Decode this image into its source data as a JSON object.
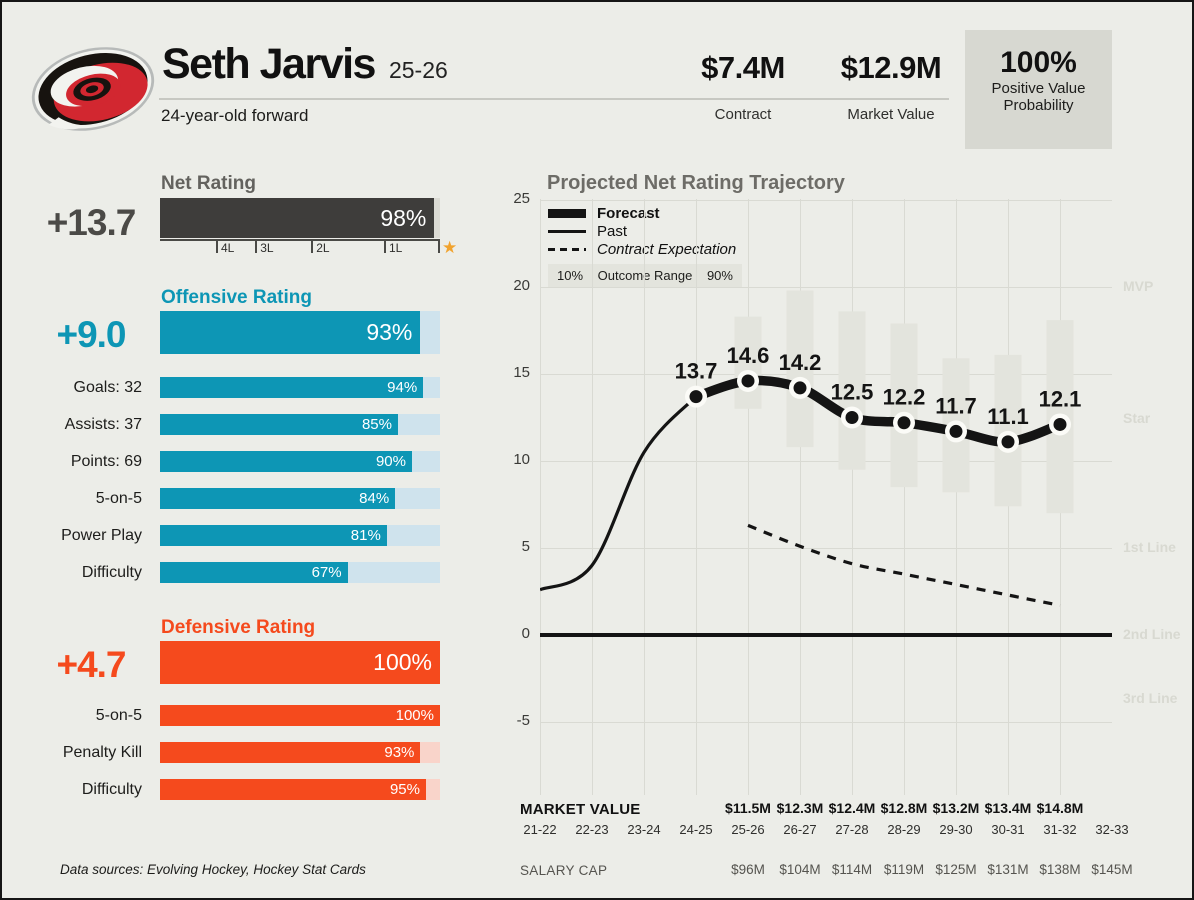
{
  "icons": {
    "star": "★"
  },
  "colors": {
    "background": "#ecede8",
    "ink": "#141414",
    "teal": "#0d96b5",
    "teal_track": "#cfe3ed",
    "orange": "#f54a1d",
    "orange_track": "#f9d4ca",
    "net_dark": "#3e3d3b",
    "net_track": "#dbdbd4",
    "gold_star": "#f1a32e",
    "gridline": "#d9dad3",
    "range_bar": "#e3e4dd",
    "dot_ring": "#fbfbf7",
    "tier_label": "#d8d9d1",
    "prob_box": "#d7d8d1",
    "legend_box": "#e3e4dd"
  },
  "header": {
    "team_logo": "carolina-hurricanes",
    "player_name": "Seth Jarvis",
    "season": "25-26",
    "subtitle": "24-year-old forward",
    "contract": {
      "value": "$7.4M",
      "label": "Contract"
    },
    "market_value": {
      "value": "$12.9M",
      "label": "Market Value"
    },
    "positive_value_probability": {
      "value": "100%",
      "label_line1": "Positive Value",
      "label_line2": "Probability"
    }
  },
  "ratings": {
    "net": {
      "title": "Net Rating",
      "value": "+13.7",
      "percentile": 98,
      "percent_label": "98%",
      "tier_ticks": [
        "4L",
        "3L",
        "2L",
        "1L"
      ]
    },
    "offensive": {
      "title": "Offensive Rating",
      "value": "+9.0",
      "percentile": 93,
      "percent_label": "93%",
      "rows": [
        {
          "label": "Goals: 32",
          "percentile": 94,
          "percent_label": "94%"
        },
        {
          "label": "Assists: 37",
          "percentile": 85,
          "percent_label": "85%"
        },
        {
          "label": "Points: 69",
          "percentile": 90,
          "percent_label": "90%"
        },
        {
          "label": "5-on-5",
          "percentile": 84,
          "percent_label": "84%"
        },
        {
          "label": "Power Play",
          "percentile": 81,
          "percent_label": "81%"
        },
        {
          "label": "Difficulty",
          "percentile": 67,
          "percent_label": "67%"
        }
      ]
    },
    "defensive": {
      "title": "Defensive Rating",
      "value": "+4.7",
      "percentile": 100,
      "percent_label": "100%",
      "rows": [
        {
          "label": "5-on-5",
          "percentile": 100,
          "percent_label": "100%"
        },
        {
          "label": "Penalty Kill",
          "percentile": 93,
          "percent_label": "93%"
        },
        {
          "label": "Difficulty",
          "percentile": 95,
          "percent_label": "95%"
        }
      ]
    }
  },
  "footnote": "Data sources: Evolving Hockey, Hockey Stat Cards",
  "chart_data": {
    "type": "line",
    "title": "Projected Net Rating Trajectory",
    "xlabel": "",
    "ylabel": "",
    "y_axis": {
      "ticks": [
        25,
        20,
        15,
        10,
        5,
        0,
        -5
      ],
      "range": [
        -5,
        25
      ],
      "grid": true
    },
    "seasons": [
      "21-22",
      "22-23",
      "23-24",
      "24-25",
      "25-26",
      "26-27",
      "27-28",
      "28-29",
      "29-30",
      "30-31",
      "31-32",
      "32-33"
    ],
    "legend": {
      "forecast": "Forecast",
      "past": "Past",
      "contract": "Contract Expectation",
      "outcome_low": "10%",
      "outcome_label": "Outcome Range",
      "outcome_high": "90%"
    },
    "tier_labels": [
      {
        "label": "MVP",
        "value": 20
      },
      {
        "label": "Star",
        "value": 12.4
      },
      {
        "label": "1st Line",
        "value": 5
      },
      {
        "label": "2nd Line",
        "value": 0
      },
      {
        "label": "3rd Line",
        "value": -3.7
      }
    ],
    "series": [
      {
        "name": "Past",
        "style": "thin-solid",
        "seasons": [
          "21-22",
          "22-23",
          "23-24",
          "24-25"
        ],
        "values": [
          2.6,
          4.0,
          10.5,
          13.7
        ]
      },
      {
        "name": "Forecast",
        "style": "thick-solid",
        "seasons": [
          "24-25",
          "25-26",
          "26-27",
          "27-28",
          "28-29",
          "29-30",
          "30-31",
          "31-32"
        ],
        "values": [
          13.7,
          14.6,
          14.2,
          12.5,
          12.2,
          11.7,
          11.1,
          12.1
        ],
        "labels": [
          "13.7",
          "14.6",
          "14.2",
          "12.5",
          "12.2",
          "11.7",
          "11.1",
          "12.1"
        ]
      },
      {
        "name": "Contract Expectation",
        "style": "dashed",
        "seasons": [
          "25-26",
          "26-27",
          "27-28",
          "28-29",
          "29-30",
          "30-31",
          "31-32"
        ],
        "values": [
          6.3,
          5.1,
          4.1,
          3.5,
          2.9,
          2.3,
          1.7
        ]
      },
      {
        "name": "Outcome Range",
        "style": "range-bars",
        "seasons": [
          "25-26",
          "26-27",
          "27-28",
          "28-29",
          "29-30",
          "30-31",
          "31-32"
        ],
        "low": [
          13.0,
          10.8,
          9.5,
          8.5,
          8.2,
          7.4,
          7.0
        ],
        "high": [
          18.3,
          19.8,
          18.6,
          17.9,
          15.9,
          16.1,
          18.1
        ]
      }
    ],
    "market_value_row": {
      "label": "MARKET VALUE",
      "entries": [
        [
          "25-26",
          "$11.5M"
        ],
        [
          "26-27",
          "$12.3M"
        ],
        [
          "27-28",
          "$12.4M"
        ],
        [
          "28-29",
          "$12.8M"
        ],
        [
          "29-30",
          "$13.2M"
        ],
        [
          "30-31",
          "$13.4M"
        ],
        [
          "31-32",
          "$14.8M"
        ]
      ]
    },
    "salary_cap_row": {
      "label": "SALARY CAP",
      "entries": [
        [
          "25-26",
          "$96M"
        ],
        [
          "26-27",
          "$104M"
        ],
        [
          "27-28",
          "$114M"
        ],
        [
          "28-29",
          "$119M"
        ],
        [
          "29-30",
          "$125M"
        ],
        [
          "30-31",
          "$131M"
        ],
        [
          "31-32",
          "$138M"
        ],
        [
          "32-33",
          "$145M"
        ]
      ]
    }
  }
}
